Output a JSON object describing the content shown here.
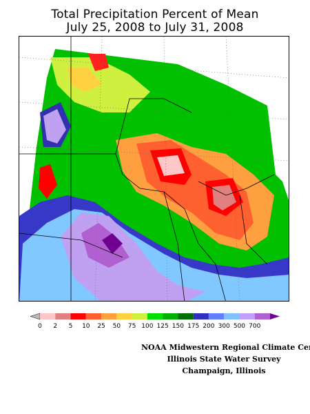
{
  "title_line1": "Total Precipitation Percent of Mean",
  "title_line2": "July 25, 2008 to July 31, 2008",
  "legend": {
    "labels": [
      "0",
      "2",
      "5",
      "10",
      "25",
      "50",
      "75",
      "100",
      "125",
      "150",
      "175",
      "200",
      "300",
      "500",
      "700"
    ],
    "colors": [
      "#b8b8b8",
      "#ffc8c8",
      "#e08080",
      "#ff0000",
      "#ff6030",
      "#ffa040",
      "#ffd040",
      "#d0f040",
      "#00e000",
      "#00b000",
      "#007000",
      "#3030c0",
      "#6080ff",
      "#80c0ff",
      "#c0a0ff",
      "#b060d0",
      "#700090"
    ]
  },
  "credits": {
    "line1": "NOAA Midwestern Regional Climate Cent",
    "line2": "Illinois State Water Survey",
    "line3": "Champaign, Illinois"
  }
}
